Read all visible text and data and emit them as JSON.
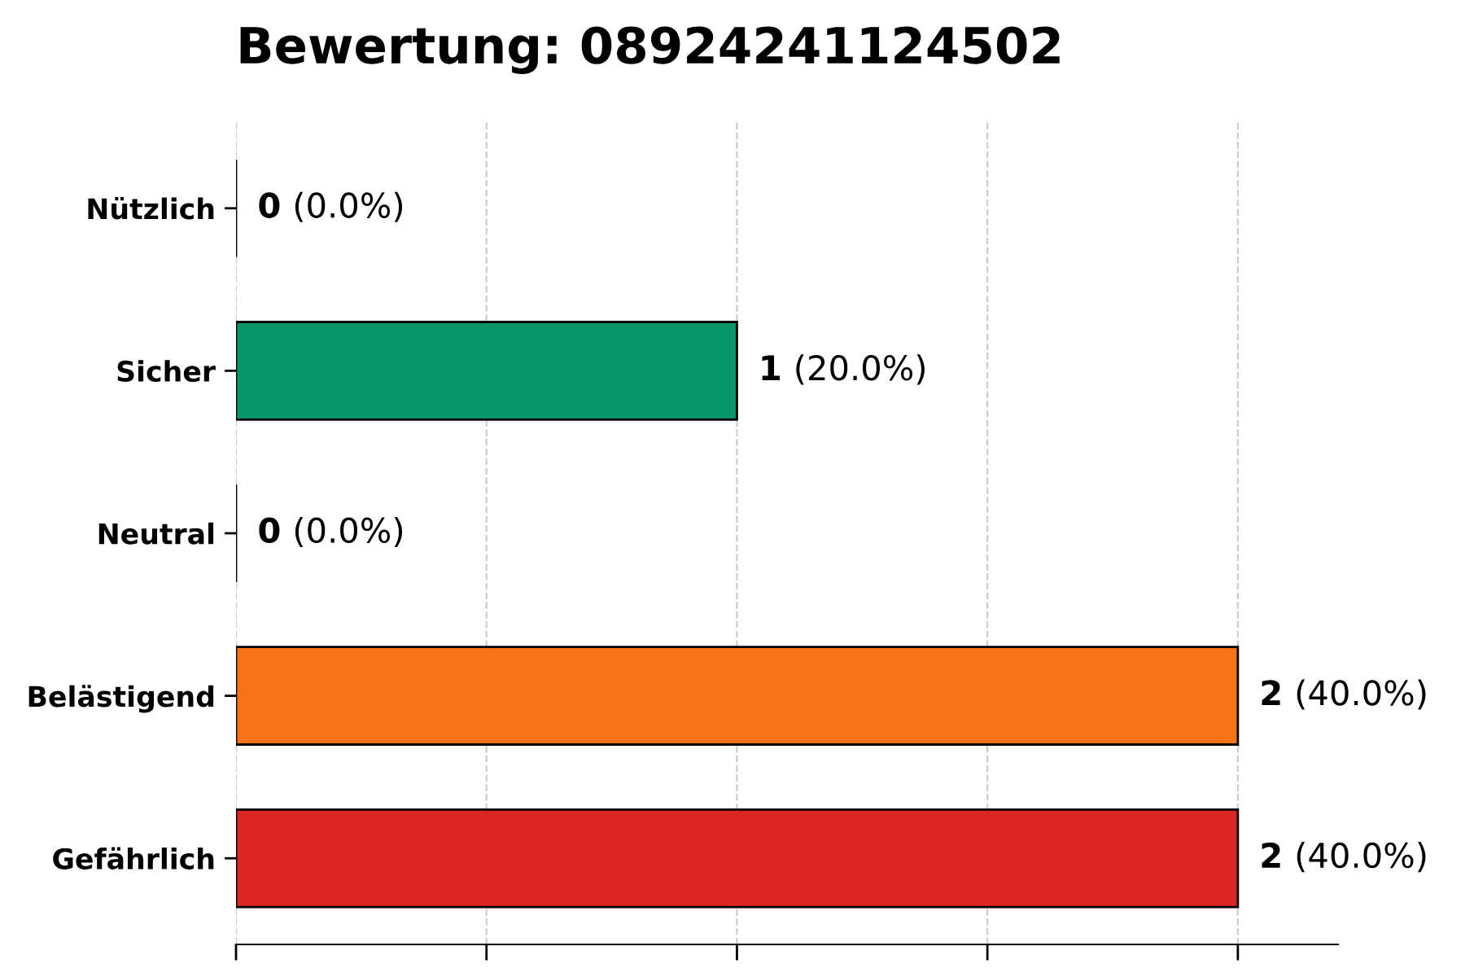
{
  "chart_data": {
    "type": "bar",
    "orientation": "horizontal",
    "title": "Bewertung: 08924241124502",
    "categories": [
      "Nützlich",
      "Sicher",
      "Neutral",
      "Belästigend",
      "Gefährlich"
    ],
    "values": [
      0,
      1,
      0,
      2,
      2
    ],
    "colors": [
      "#000000",
      "#059669",
      "#000000",
      "#f97316",
      "#dc2626"
    ],
    "value_labels": [
      "0 (0.0%)",
      "1 (20.0%)",
      "0 (0.0%)",
      "2 (40.0%)",
      "2 (40.0%)"
    ],
    "xlim": [
      0,
      2.2
    ],
    "xticks": [
      {
        "value": 0,
        "label": null
      },
      {
        "value": 0.5,
        "label": null
      },
      {
        "value": 1,
        "label": null
      },
      {
        "value": 1.5,
        "label": null
      },
      {
        "value": 2,
        "label": null
      }
    ],
    "tick_labels": "y",
    "grid": "x"
  }
}
